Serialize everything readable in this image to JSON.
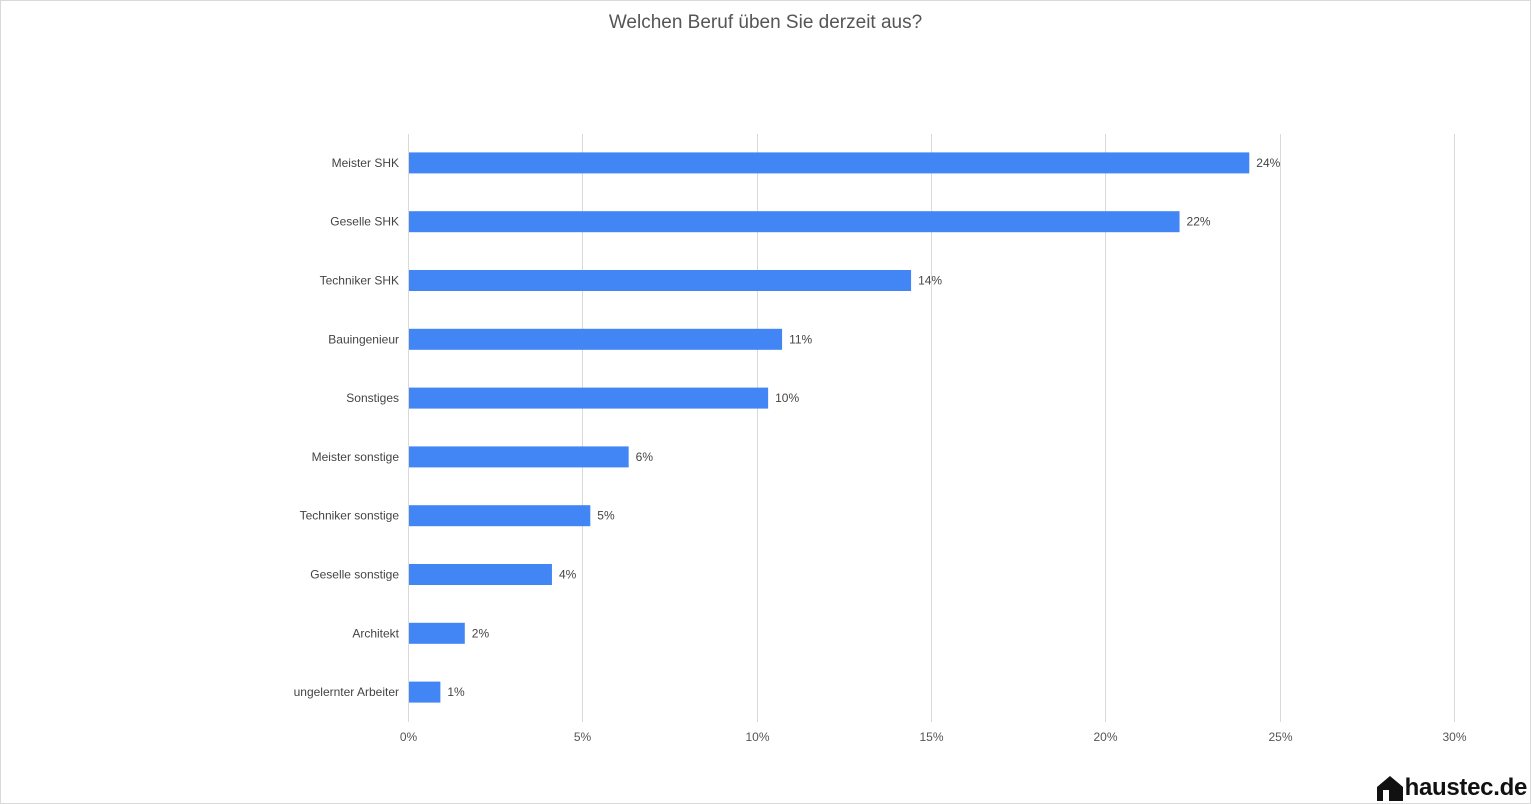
{
  "chart_data": {
    "type": "bar",
    "orientation": "horizontal",
    "title": "Welchen Beruf üben Sie derzeit aus?",
    "categories": [
      "Meister SHK",
      "Geselle SHK",
      "Techniker SHK",
      "Bauingenieur",
      "Sonstiges",
      "Meister sonstige",
      "Techniker sonstige",
      "Geselle sonstige",
      "Architekt",
      "ungelernter Arbeiter"
    ],
    "values": [
      24.1,
      22.1,
      14.4,
      10.7,
      10.3,
      6.3,
      5.2,
      4.1,
      1.6,
      0.9
    ],
    "data_labels": [
      "24%",
      "22%",
      "14%",
      "11%",
      "10%",
      "6%",
      "5%",
      "4%",
      "2%",
      "1%"
    ],
    "xlim": [
      0,
      30
    ],
    "x_ticks": [
      0,
      5,
      10,
      15,
      20,
      25,
      30
    ],
    "x_tick_labels": [
      "0%",
      "5%",
      "10%",
      "15%",
      "20%",
      "25%",
      "30%"
    ],
    "grid": true,
    "bar_color": "#4285f4",
    "grid_color": "#d9d9d9"
  },
  "logo": {
    "text": "haustec.de"
  }
}
